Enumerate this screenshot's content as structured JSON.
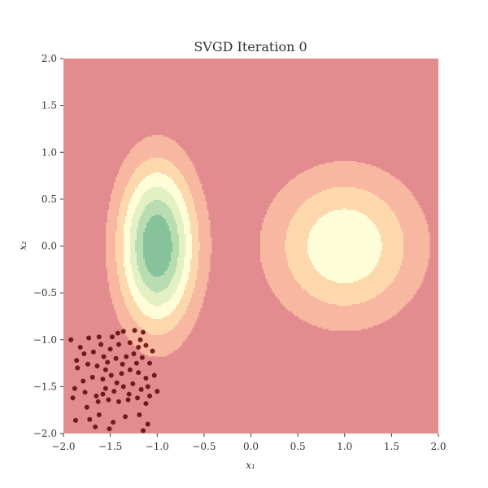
{
  "chart_data": {
    "type": "scatter",
    "title": "SVGD Iteration 0",
    "xlabel": "x₁",
    "ylabel": "x₂",
    "xlim": [
      -2.0,
      2.0
    ],
    "ylim": [
      -2.0,
      2.0
    ],
    "xticks": [
      "−2.0",
      "−1.5",
      "−1.0",
      "−0.5",
      "0.0",
      "0.5",
      "1.0",
      "1.5",
      "2.0"
    ],
    "yticks": [
      "−2.0",
      "−1.5",
      "−1.0",
      "−0.5",
      "0.0",
      "0.5",
      "1.0",
      "1.5",
      "2.0"
    ],
    "grid": false,
    "legend": "none",
    "background_density": {
      "type": "filled-contour",
      "components": [
        {
          "mean": [
            -1.0,
            0.0
          ],
          "std": [
            0.28,
            0.6
          ]
        },
        {
          "mean": [
            1.0,
            0.0
          ],
          "std": [
            0.55,
            0.55
          ]
        }
      ],
      "level_colors": [
        "#e38c8f",
        "#f7b7a0",
        "#fdd8ad",
        "#fefdd8",
        "#e3f0c4",
        "#b8ddb2",
        "#87c39a"
      ],
      "color_low": "#e38c8f",
      "color_high": "#87c39a"
    },
    "series": [
      {
        "color": "#5c0000",
        "points": [
          [
            -1.92,
            -1.0
          ],
          [
            -1.82,
            -1.08
          ],
          [
            -1.73,
            -0.98
          ],
          [
            -1.62,
            -0.97
          ],
          [
            -1.48,
            -0.97
          ],
          [
            -1.42,
            -0.93
          ],
          [
            -1.36,
            -0.91
          ],
          [
            -1.24,
            -0.9
          ],
          [
            -1.15,
            -0.92
          ],
          [
            -1.86,
            -1.22
          ],
          [
            -1.78,
            -1.15
          ],
          [
            -1.68,
            -1.13
          ],
          [
            -1.57,
            -1.18
          ],
          [
            -1.5,
            -1.1
          ],
          [
            -1.41,
            -1.05
          ],
          [
            -1.29,
            -1.03
          ],
          [
            -1.2,
            -1.08
          ],
          [
            -1.12,
            -1.06
          ],
          [
            -1.05,
            -1.12
          ],
          [
            -1.85,
            -1.3
          ],
          [
            -1.74,
            -1.26
          ],
          [
            -1.64,
            -1.28
          ],
          [
            -1.53,
            -1.24
          ],
          [
            -1.44,
            -1.2
          ],
          [
            -1.33,
            -1.18
          ],
          [
            -1.25,
            -1.15
          ],
          [
            -1.16,
            -1.19
          ],
          [
            -1.08,
            -1.25
          ],
          [
            -1.88,
            -1.52
          ],
          [
            -1.79,
            -1.44
          ],
          [
            -1.69,
            -1.4
          ],
          [
            -1.58,
            -1.42
          ],
          [
            -1.49,
            -1.38
          ],
          [
            -1.38,
            -1.36
          ],
          [
            -1.29,
            -1.32
          ],
          [
            -1.2,
            -1.35
          ],
          [
            -1.12,
            -1.41
          ],
          [
            -1.03,
            -1.38
          ],
          [
            -1.9,
            -1.62
          ],
          [
            -1.77,
            -1.56
          ],
          [
            -1.65,
            -1.6
          ],
          [
            -1.55,
            -1.52
          ],
          [
            -1.46,
            -1.55
          ],
          [
            -1.36,
            -1.5
          ],
          [
            -1.26,
            -1.47
          ],
          [
            -1.17,
            -1.53
          ],
          [
            -1.08,
            -1.6
          ],
          [
            -1.0,
            -1.55
          ],
          [
            -1.75,
            -1.72
          ],
          [
            -1.63,
            -1.66
          ],
          [
            -1.52,
            -1.64
          ],
          [
            -1.41,
            -1.66
          ],
          [
            -1.31,
            -1.64
          ],
          [
            -1.21,
            -1.62
          ],
          [
            -1.12,
            -1.68
          ],
          [
            -1.87,
            -1.86
          ],
          [
            -1.72,
            -1.85
          ],
          [
            -1.62,
            -1.8
          ],
          [
            -1.47,
            -1.88
          ],
          [
            -1.34,
            -1.82
          ],
          [
            -1.19,
            -1.8
          ],
          [
            -1.1,
            -1.9
          ],
          [
            -1.66,
            -1.93
          ],
          [
            -1.51,
            -1.95
          ],
          [
            -1.15,
            -1.97
          ],
          [
            -1.55,
            -1.32
          ],
          [
            -1.43,
            -1.46
          ],
          [
            -1.3,
            -1.58
          ],
          [
            -1.58,
            -1.58
          ],
          [
            -1.6,
            -1.05
          ],
          [
            -1.37,
            -1.26
          ],
          [
            -1.22,
            -1.25
          ],
          [
            -1.18,
            -1.0
          ],
          [
            -1.1,
            -1.5
          ]
        ]
      }
    ]
  }
}
